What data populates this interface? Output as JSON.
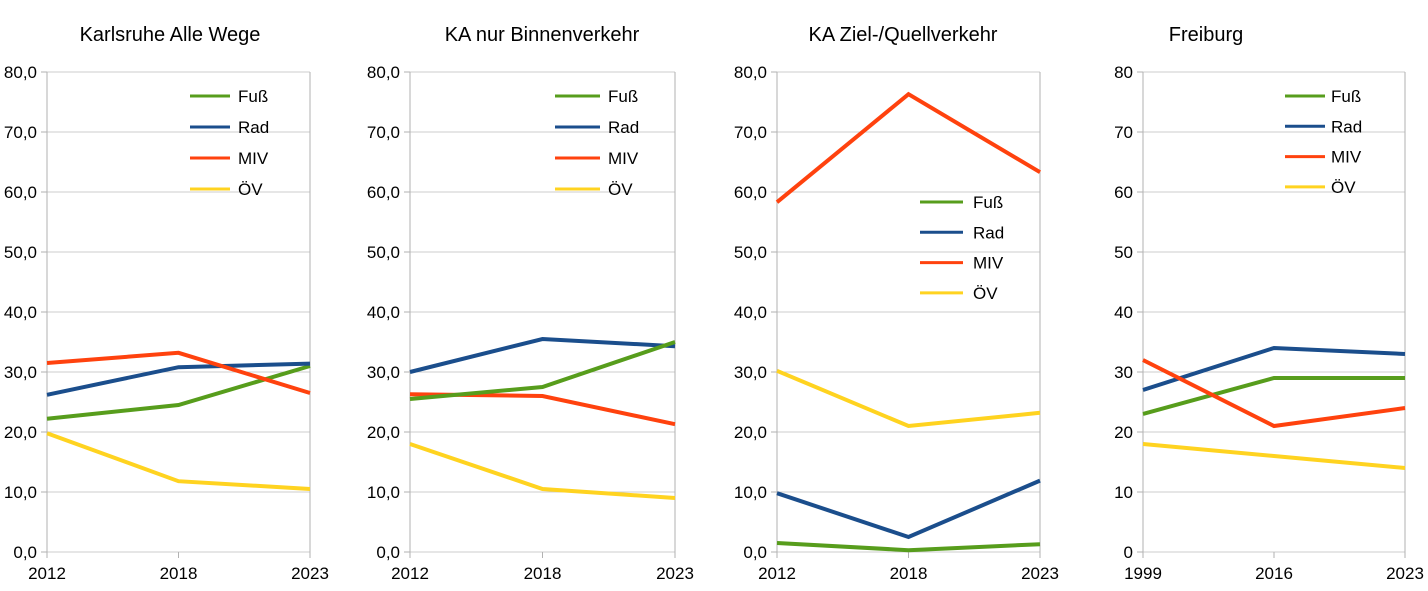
{
  "page": {
    "background": "#FFFFFF",
    "text_color": "#000000",
    "grid_color": "#CCCCCC",
    "axis_color": "#B2B2B2"
  },
  "chart_data": [
    {
      "type": "line",
      "title": "Karlsruhe Alle Wege",
      "categories": [
        "2012",
        "2018",
        "2023"
      ],
      "series": [
        {
          "name": "Fuß",
          "color": "#579D1C",
          "values": [
            22.2,
            24.5,
            31.0
          ]
        },
        {
          "name": "Rad",
          "color": "#1B4E8C",
          "values": [
            26.2,
            30.8,
            31.4
          ]
        },
        {
          "name": "MIV",
          "color": "#FF420E",
          "values": [
            31.5,
            33.2,
            26.5
          ]
        },
        {
          "name": "ÖV",
          "color": "#FFD320",
          "values": [
            19.8,
            11.8,
            10.5
          ]
        }
      ],
      "ylim": [
        0,
        80
      ],
      "ytick_step": 10,
      "ytick_format": "decimal-comma",
      "grid": true,
      "legend_position": "top-right",
      "draw_order": [
        "ÖV",
        "Fuß",
        "Rad",
        "MIV"
      ]
    },
    {
      "type": "line",
      "title": "KA nur Binnenverkehr",
      "categories": [
        "2012",
        "2018",
        "2023"
      ],
      "series": [
        {
          "name": "Fuß",
          "color": "#579D1C",
          "values": [
            25.5,
            27.5,
            35.0
          ]
        },
        {
          "name": "Rad",
          "color": "#1B4E8C",
          "values": [
            30.0,
            35.5,
            34.3
          ]
        },
        {
          "name": "MIV",
          "color": "#FF420E",
          "values": [
            26.3,
            26.0,
            21.3
          ]
        },
        {
          "name": "ÖV",
          "color": "#FFD320",
          "values": [
            18.0,
            10.5,
            9.0
          ]
        }
      ],
      "ylim": [
        0,
        80
      ],
      "ytick_step": 10,
      "ytick_format": "decimal-comma",
      "grid": true,
      "legend_position": "top-right",
      "draw_order": [
        "ÖV",
        "MIV",
        "Rad",
        "Fuß"
      ]
    },
    {
      "type": "line",
      "title": "KA Ziel-/Quellverkehr",
      "categories": [
        "2012",
        "2018",
        "2023"
      ],
      "series": [
        {
          "name": "Fuß",
          "color": "#579D1C",
          "values": [
            1.5,
            0.3,
            1.3
          ]
        },
        {
          "name": "Rad",
          "color": "#1B4E8C",
          "values": [
            9.8,
            2.5,
            11.9
          ]
        },
        {
          "name": "MIV",
          "color": "#FF420E",
          "values": [
            58.3,
            76.3,
            63.3
          ]
        },
        {
          "name": "ÖV",
          "color": "#FFD320",
          "values": [
            30.2,
            21.0,
            23.2
          ]
        }
      ],
      "ylim": [
        0,
        80
      ],
      "ytick_step": 10,
      "ytick_format": "decimal-comma",
      "grid": true,
      "legend_position": "middle-right",
      "draw_order": [
        "ÖV",
        "Fuß",
        "Rad",
        "MIV"
      ]
    },
    {
      "type": "line",
      "title": "Freiburg",
      "categories": [
        "1999",
        "2016",
        "2023"
      ],
      "series": [
        {
          "name": "Fuß",
          "color": "#579D1C",
          "values": [
            23,
            29,
            29
          ]
        },
        {
          "name": "Rad",
          "color": "#1B4E8C",
          "values": [
            27,
            34,
            33
          ]
        },
        {
          "name": "MIV",
          "color": "#FF420E",
          "values": [
            32,
            21,
            24
          ]
        },
        {
          "name": "ÖV",
          "color": "#FFD320",
          "values": [
            18,
            16,
            14
          ]
        }
      ],
      "ylim": [
        0,
        80
      ],
      "ytick_step": 10,
      "ytick_format": "integer",
      "grid": true,
      "legend_position": "top-right",
      "draw_order": [
        "ÖV",
        "Fuß",
        "Rad",
        "MIV"
      ]
    }
  ]
}
